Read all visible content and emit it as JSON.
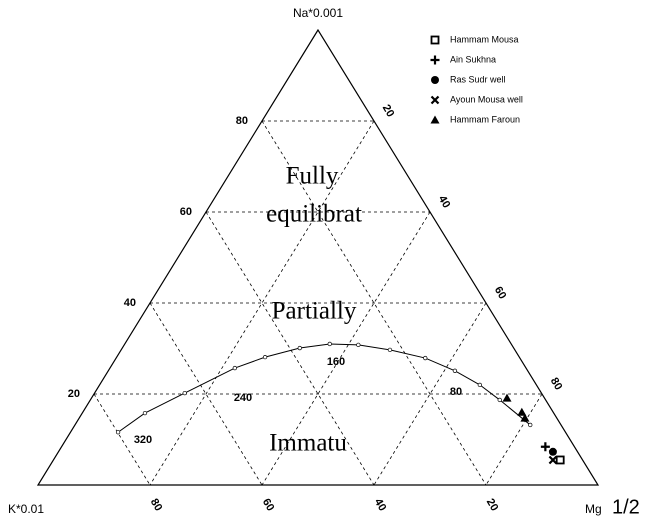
{
  "chart_data": {
    "type": "ternary",
    "corner_labels": {
      "top": "Na*0.001",
      "left": "K*0.01",
      "right": "Mg",
      "exponent": "1/2"
    },
    "grid": true,
    "na_ticks": [
      20,
      40,
      60,
      80
    ],
    "k_ticks": [
      20,
      40,
      60,
      80
    ],
    "mg_ticks": [
      20,
      40,
      60,
      80
    ],
    "regions": [
      [
        "Fully",
        "equilibrat"
      ],
      [
        "Partially"
      ],
      [
        "Immatu"
      ]
    ],
    "curve": {
      "na": [
        11.6,
        15.8,
        20.2,
        25.7,
        28.1,
        30.1,
        31.0,
        30.8,
        29.7,
        27.9,
        25.1,
        22.0,
        18.7,
        13.2
      ],
      "k": [
        79.9,
        73.0,
        63.7,
        52.0,
        45.4,
        38.2,
        32.4,
        27.4,
        22.3,
        16.9,
        13.0,
        10.1,
        8.2,
        5.5
      ],
      "mg": [
        8.5,
        11.2,
        16.1,
        22.3,
        26.5,
        31.7,
        36.6,
        41.8,
        48.0,
        55.2,
        61.9,
        67.9,
        73.1,
        81.3
      ],
      "labels": [
        "320",
        "240",
        "160",
        "80"
      ]
    },
    "series": [
      {
        "name": "Hammam Mousa",
        "marker": "square",
        "color": "#000000",
        "na": [
          5.5
        ],
        "k": [
          4.0
        ],
        "mg": [
          90.5
        ]
      },
      {
        "name": "Ain Sukhna",
        "marker": "plus",
        "color": "#000000",
        "na": [
          8.4
        ],
        "k": [
          5.2
        ],
        "mg": [
          86.4
        ]
      },
      {
        "name": "Ras Sudr well",
        "marker": "circle",
        "color": "#000000",
        "na": [
          7.3
        ],
        "k": [
          4.4
        ],
        "mg": [
          88.3
        ]
      },
      {
        "name": "Ayoun Mousa well",
        "marker": "x",
        "color": "#000000",
        "na": [
          5.5
        ],
        "k": [
          5.3
        ],
        "mg": [
          89.2
        ]
      },
      {
        "name": "Hammam Faroun",
        "marker": "triangle",
        "color": "#000000",
        "na": [
          19.1,
          16.0,
          14.7
        ],
        "k": [
          6.7,
          5.6,
          5.7
        ],
        "mg": [
          74.2,
          78.4,
          79.6
        ]
      }
    ]
  }
}
